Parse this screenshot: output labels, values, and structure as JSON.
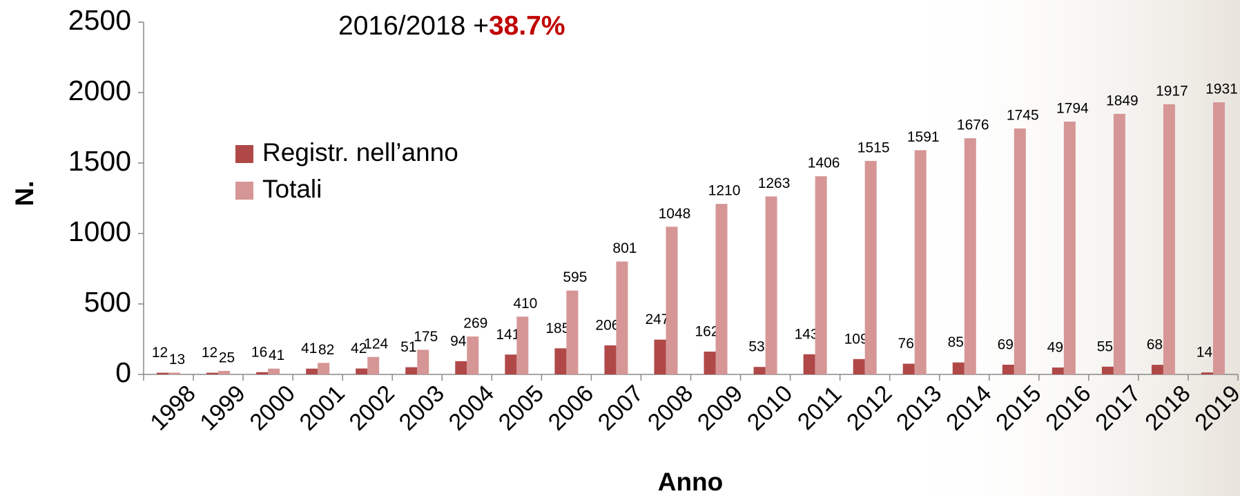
{
  "chart_data": {
    "type": "bar",
    "annotation": {
      "text": "2016/2018 +",
      "highlight": "38.7%"
    },
    "y_label": "N.",
    "x_label": "Anno",
    "categories": [
      "1998",
      "1999",
      "2000",
      "2001",
      "2002",
      "2003",
      "2004",
      "2005",
      "2006",
      "2007",
      "2008",
      "2009",
      "2010",
      "2011",
      "2012",
      "2013",
      "2014",
      "2015",
      "2016",
      "2017",
      "2018",
      "2019"
    ],
    "series": [
      {
        "name": "Registr. nell’anno",
        "color": "#b04848",
        "values": [
          12,
          12,
          16,
          41,
          42,
          51,
          94,
          141,
          185,
          206,
          247,
          162,
          53,
          143,
          109,
          76,
          85,
          69,
          49,
          55,
          68,
          14
        ]
      },
      {
        "name": "Totali",
        "color": "#d69696",
        "values": [
          13,
          25,
          41,
          82,
          124,
          175,
          269,
          410,
          595,
          801,
          1048,
          1210,
          1263,
          1406,
          1515,
          1591,
          1676,
          1745,
          1794,
          1849,
          1917,
          1931
        ]
      }
    ],
    "ylim": [
      0,
      2500
    ],
    "yticks": [
      0,
      500,
      1000,
      1500,
      2000,
      2500
    ],
    "grid": false
  }
}
